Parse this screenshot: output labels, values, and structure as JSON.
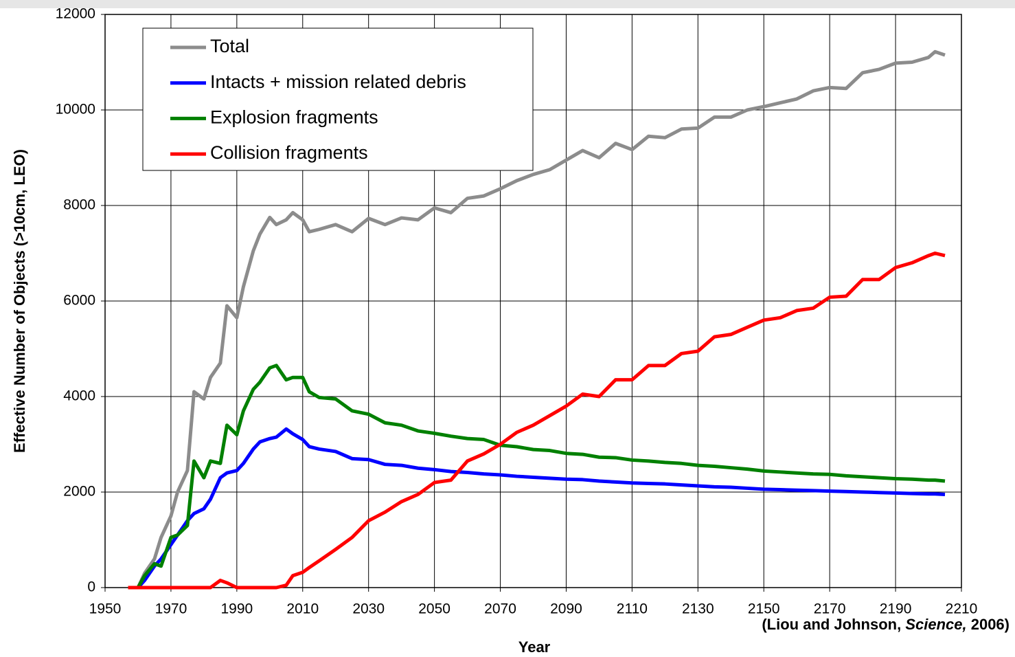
{
  "chart_data": {
    "type": "line",
    "xlabel": "Year",
    "ylabel": "Effective Number of Objects (>10cm, LEO)",
    "annotation": [
      "(Liou and Johnson, ",
      "Science,",
      " 2006)"
    ],
    "x": [
      1957,
      1960,
      1962,
      1965,
      1967,
      1970,
      1972,
      1975,
      1977,
      1980,
      1982,
      1985,
      1987,
      1990,
      1992,
      1995,
      1997,
      2000,
      2002,
      2005,
      2007,
      2010,
      2012,
      2015,
      2020,
      2025,
      2030,
      2035,
      2040,
      2045,
      2050,
      2055,
      2060,
      2065,
      2070,
      2075,
      2080,
      2085,
      2090,
      2095,
      2100,
      2105,
      2110,
      2115,
      2120,
      2125,
      2130,
      2135,
      2140,
      2145,
      2150,
      2155,
      2160,
      2165,
      2170,
      2175,
      2180,
      2185,
      2190,
      2195,
      2200,
      2202,
      2205
    ],
    "series": [
      {
        "name": "Total",
        "color": "#8c8c8c",
        "values": [
          0,
          0,
          300,
          600,
          1050,
          1500,
          2000,
          2450,
          4100,
          3950,
          4400,
          4700,
          5900,
          5650,
          6300,
          7050,
          7400,
          7750,
          7600,
          7700,
          7850,
          7700,
          7450,
          7500,
          7600,
          7450,
          7730,
          7600,
          7740,
          7700,
          7950,
          7850,
          8150,
          8200,
          8350,
          8520,
          8650,
          8750,
          8950,
          9150,
          9000,
          9300,
          9170,
          9450,
          9420,
          9600,
          9620,
          9850,
          9850,
          10000,
          10070,
          10150,
          10230,
          10400,
          10470,
          10450,
          10780,
          10850,
          10980,
          11000,
          11100,
          11220,
          11150
        ]
      },
      {
        "name": "Intacts + mission related debris",
        "color": "#0000ff",
        "values": [
          0,
          0,
          150,
          450,
          600,
          900,
          1100,
          1400,
          1550,
          1650,
          1850,
          2300,
          2400,
          2450,
          2600,
          2900,
          3050,
          3120,
          3150,
          3320,
          3220,
          3100,
          2950,
          2900,
          2850,
          2700,
          2680,
          2580,
          2560,
          2500,
          2470,
          2430,
          2410,
          2380,
          2360,
          2330,
          2310,
          2290,
          2270,
          2260,
          2230,
          2210,
          2190,
          2180,
          2170,
          2150,
          2130,
          2110,
          2100,
          2080,
          2060,
          2050,
          2040,
          2030,
          2020,
          2010,
          2000,
          1990,
          1980,
          1970,
          1960,
          1960,
          1950
        ]
      },
      {
        "name": "Explosion fragments",
        "color": "#008000",
        "values": [
          0,
          0,
          250,
          500,
          450,
          1050,
          1100,
          1300,
          2650,
          2300,
          2650,
          2600,
          3400,
          3200,
          3700,
          4150,
          4300,
          4600,
          4650,
          4350,
          4400,
          4400,
          4100,
          3980,
          3950,
          3700,
          3630,
          3450,
          3400,
          3280,
          3230,
          3170,
          3120,
          3100,
          2980,
          2950,
          2890,
          2870,
          2810,
          2790,
          2730,
          2720,
          2670,
          2650,
          2620,
          2600,
          2560,
          2540,
          2510,
          2480,
          2440,
          2420,
          2400,
          2380,
          2370,
          2340,
          2320,
          2300,
          2280,
          2270,
          2250,
          2250,
          2230
        ]
      },
      {
        "name": "Collision fragments",
        "color": "#ff0000",
        "values": [
          0,
          0,
          0,
          0,
          0,
          0,
          0,
          0,
          0,
          0,
          0,
          150,
          100,
          0,
          0,
          0,
          0,
          0,
          0,
          50,
          250,
          320,
          420,
          560,
          800,
          1050,
          1400,
          1580,
          1800,
          1950,
          2200,
          2250,
          2650,
          2800,
          3000,
          3250,
          3400,
          3600,
          3800,
          4050,
          4000,
          4350,
          4350,
          4650,
          4650,
          4900,
          4950,
          5250,
          5300,
          5450,
          5600,
          5650,
          5800,
          5850,
          6080,
          6100,
          6450,
          6450,
          6700,
          6800,
          6950,
          7000,
          6950
        ]
      }
    ],
    "xlim": [
      1950,
      2210
    ],
    "xticks": [
      1950,
      1970,
      1990,
      2010,
      2030,
      2050,
      2070,
      2090,
      2110,
      2130,
      2150,
      2170,
      2190,
      2210
    ],
    "ylim": [
      0,
      12000
    ],
    "yticks": [
      0,
      2000,
      4000,
      6000,
      8000,
      10000,
      12000
    ],
    "grid": true
  }
}
